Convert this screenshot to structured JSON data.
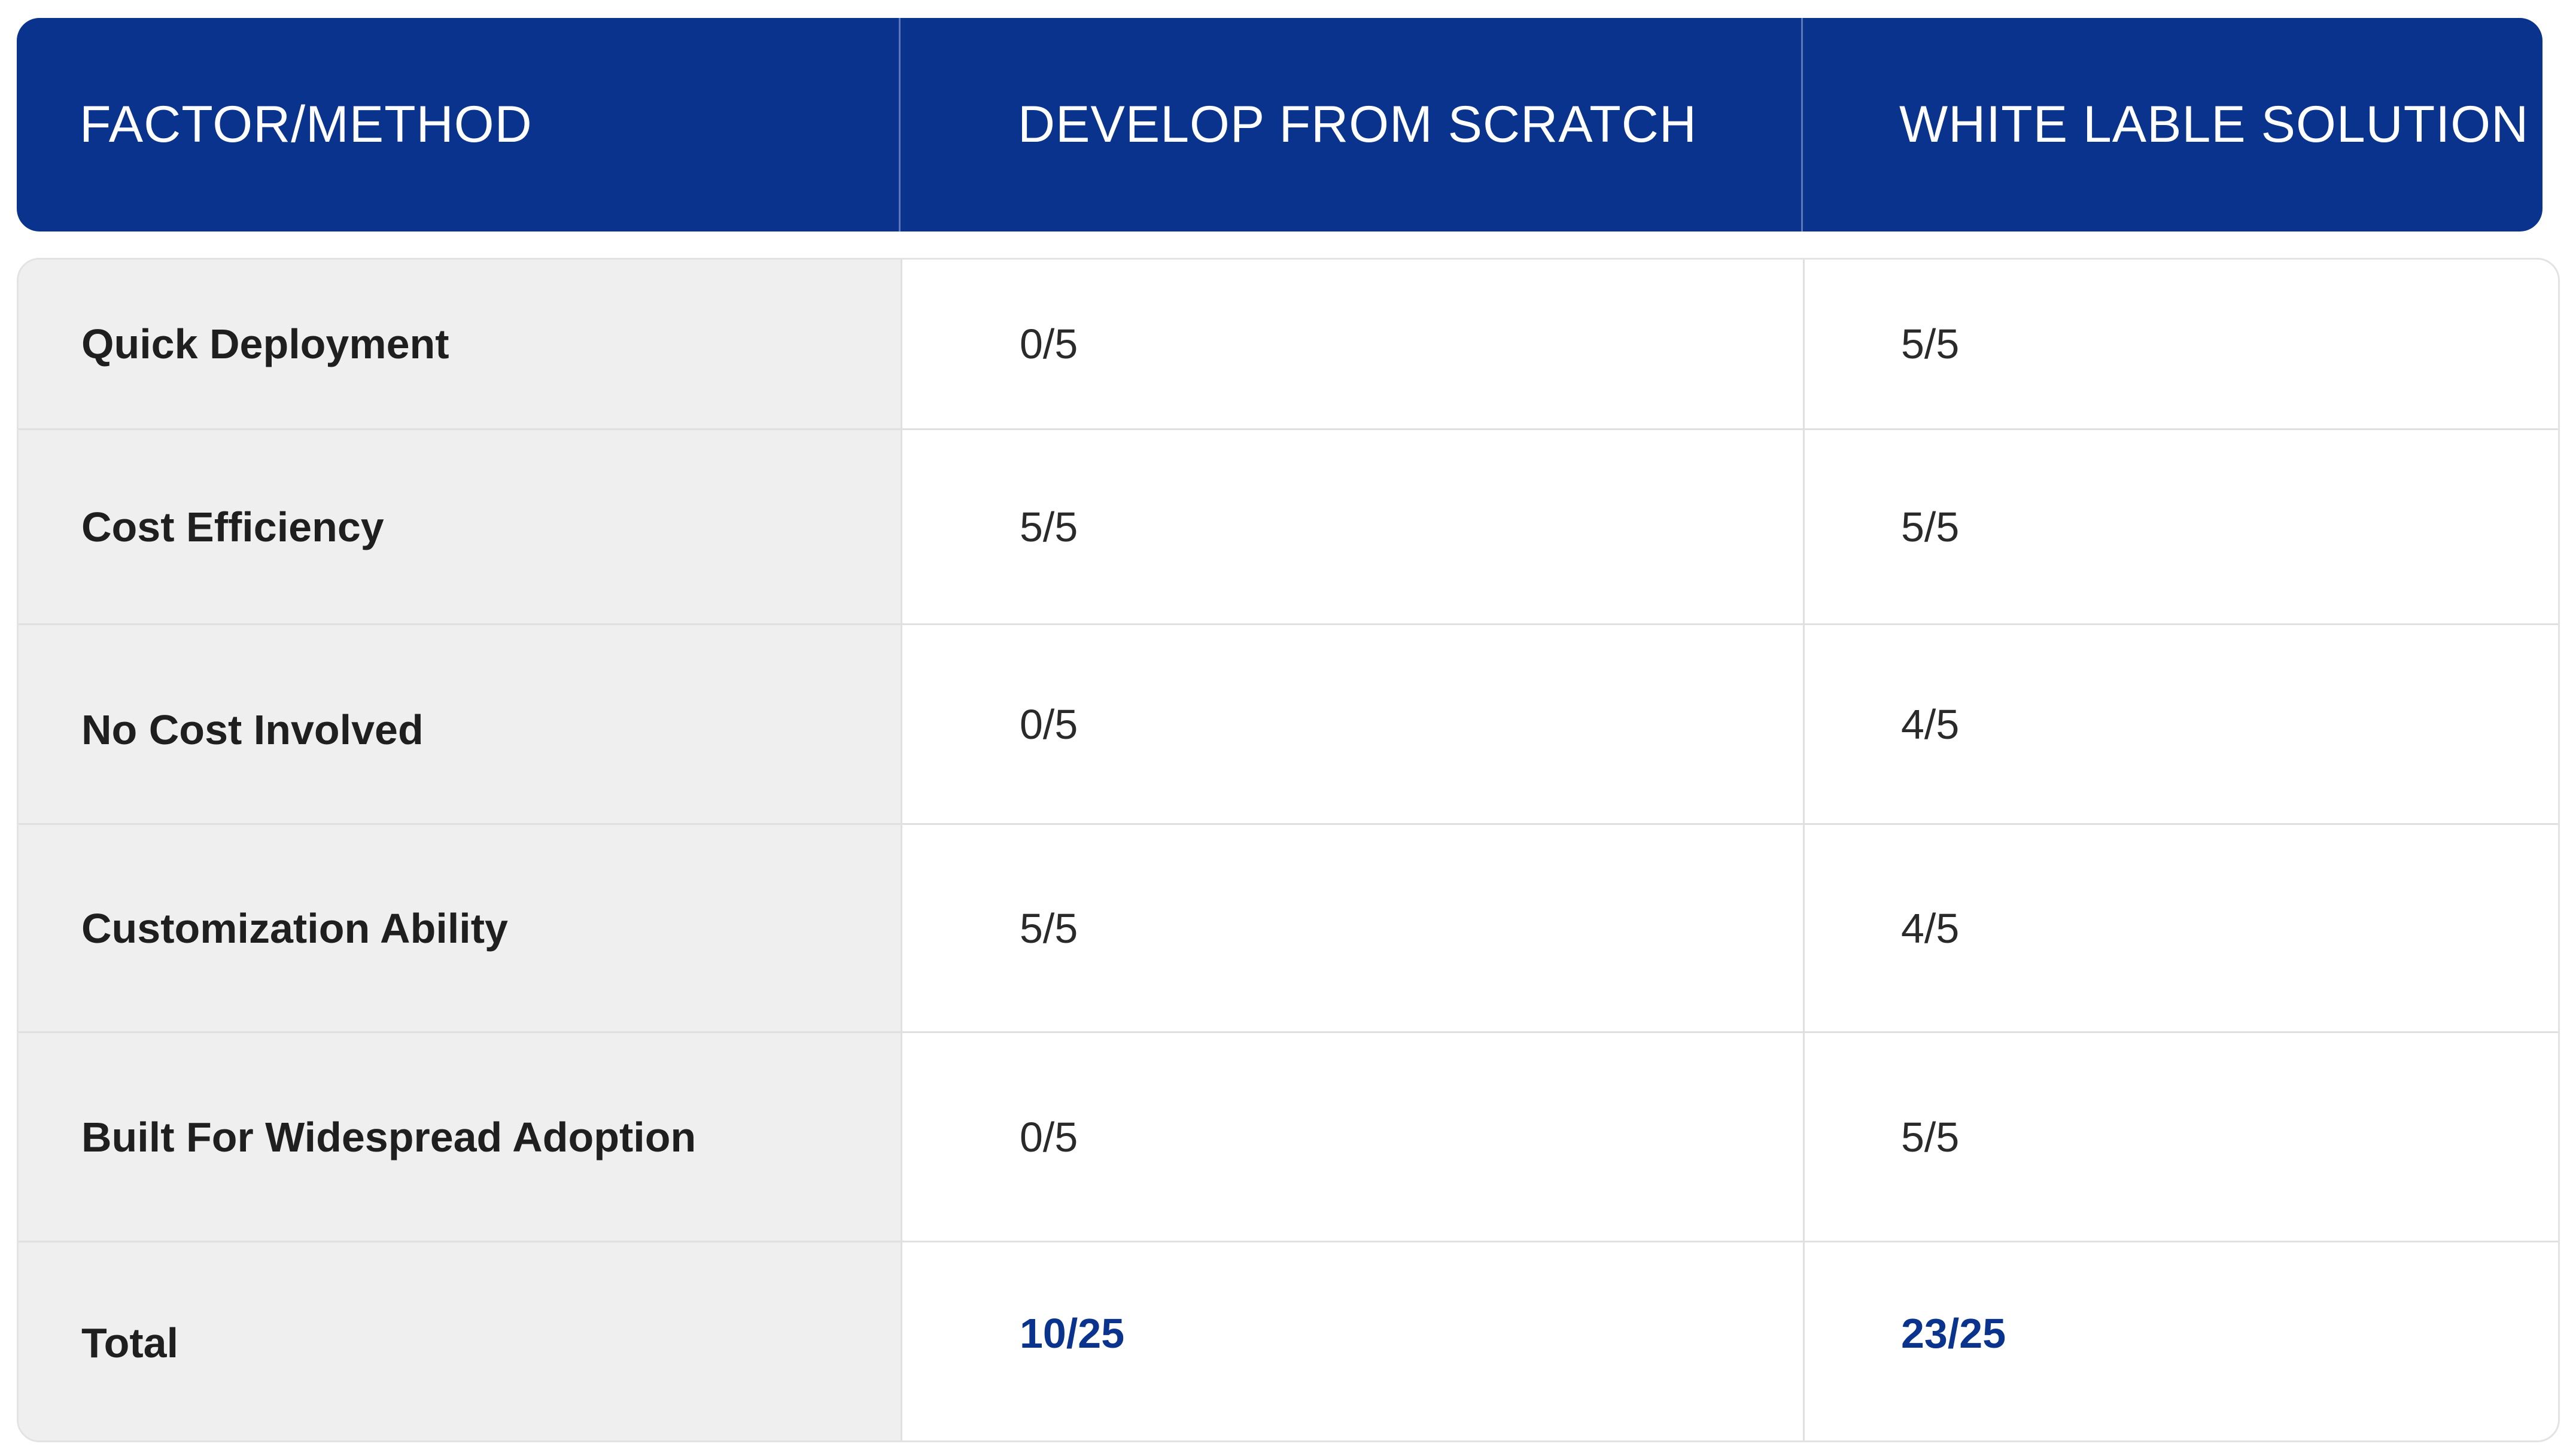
{
  "header": {
    "col1": "FACTOR/METHOD",
    "col2": "DEVELOP FROM SCRATCH",
    "col3": "WHITE LABLE SOLUTION"
  },
  "rows": [
    {
      "factor": "Quick Deployment",
      "scratch": "0/5",
      "white_label": "5/5"
    },
    {
      "factor": "Cost Efficiency",
      "scratch": "5/5",
      "white_label": "5/5"
    },
    {
      "factor": "No Cost Involved",
      "scratch": "0/5",
      "white_label": "4/5"
    },
    {
      "factor": "Customization Ability",
      "scratch": "5/5",
      "white_label": "4/5"
    },
    {
      "factor": "Built For Widespread Adoption",
      "scratch": "0/5",
      "white_label": "5/5"
    }
  ],
  "total": {
    "label": "Total",
    "scratch": "10/25",
    "white_label": "23/25"
  },
  "colors": {
    "header_bg": "#0a338e",
    "factor_bg": "#efefef",
    "total_text": "#0a338e"
  }
}
